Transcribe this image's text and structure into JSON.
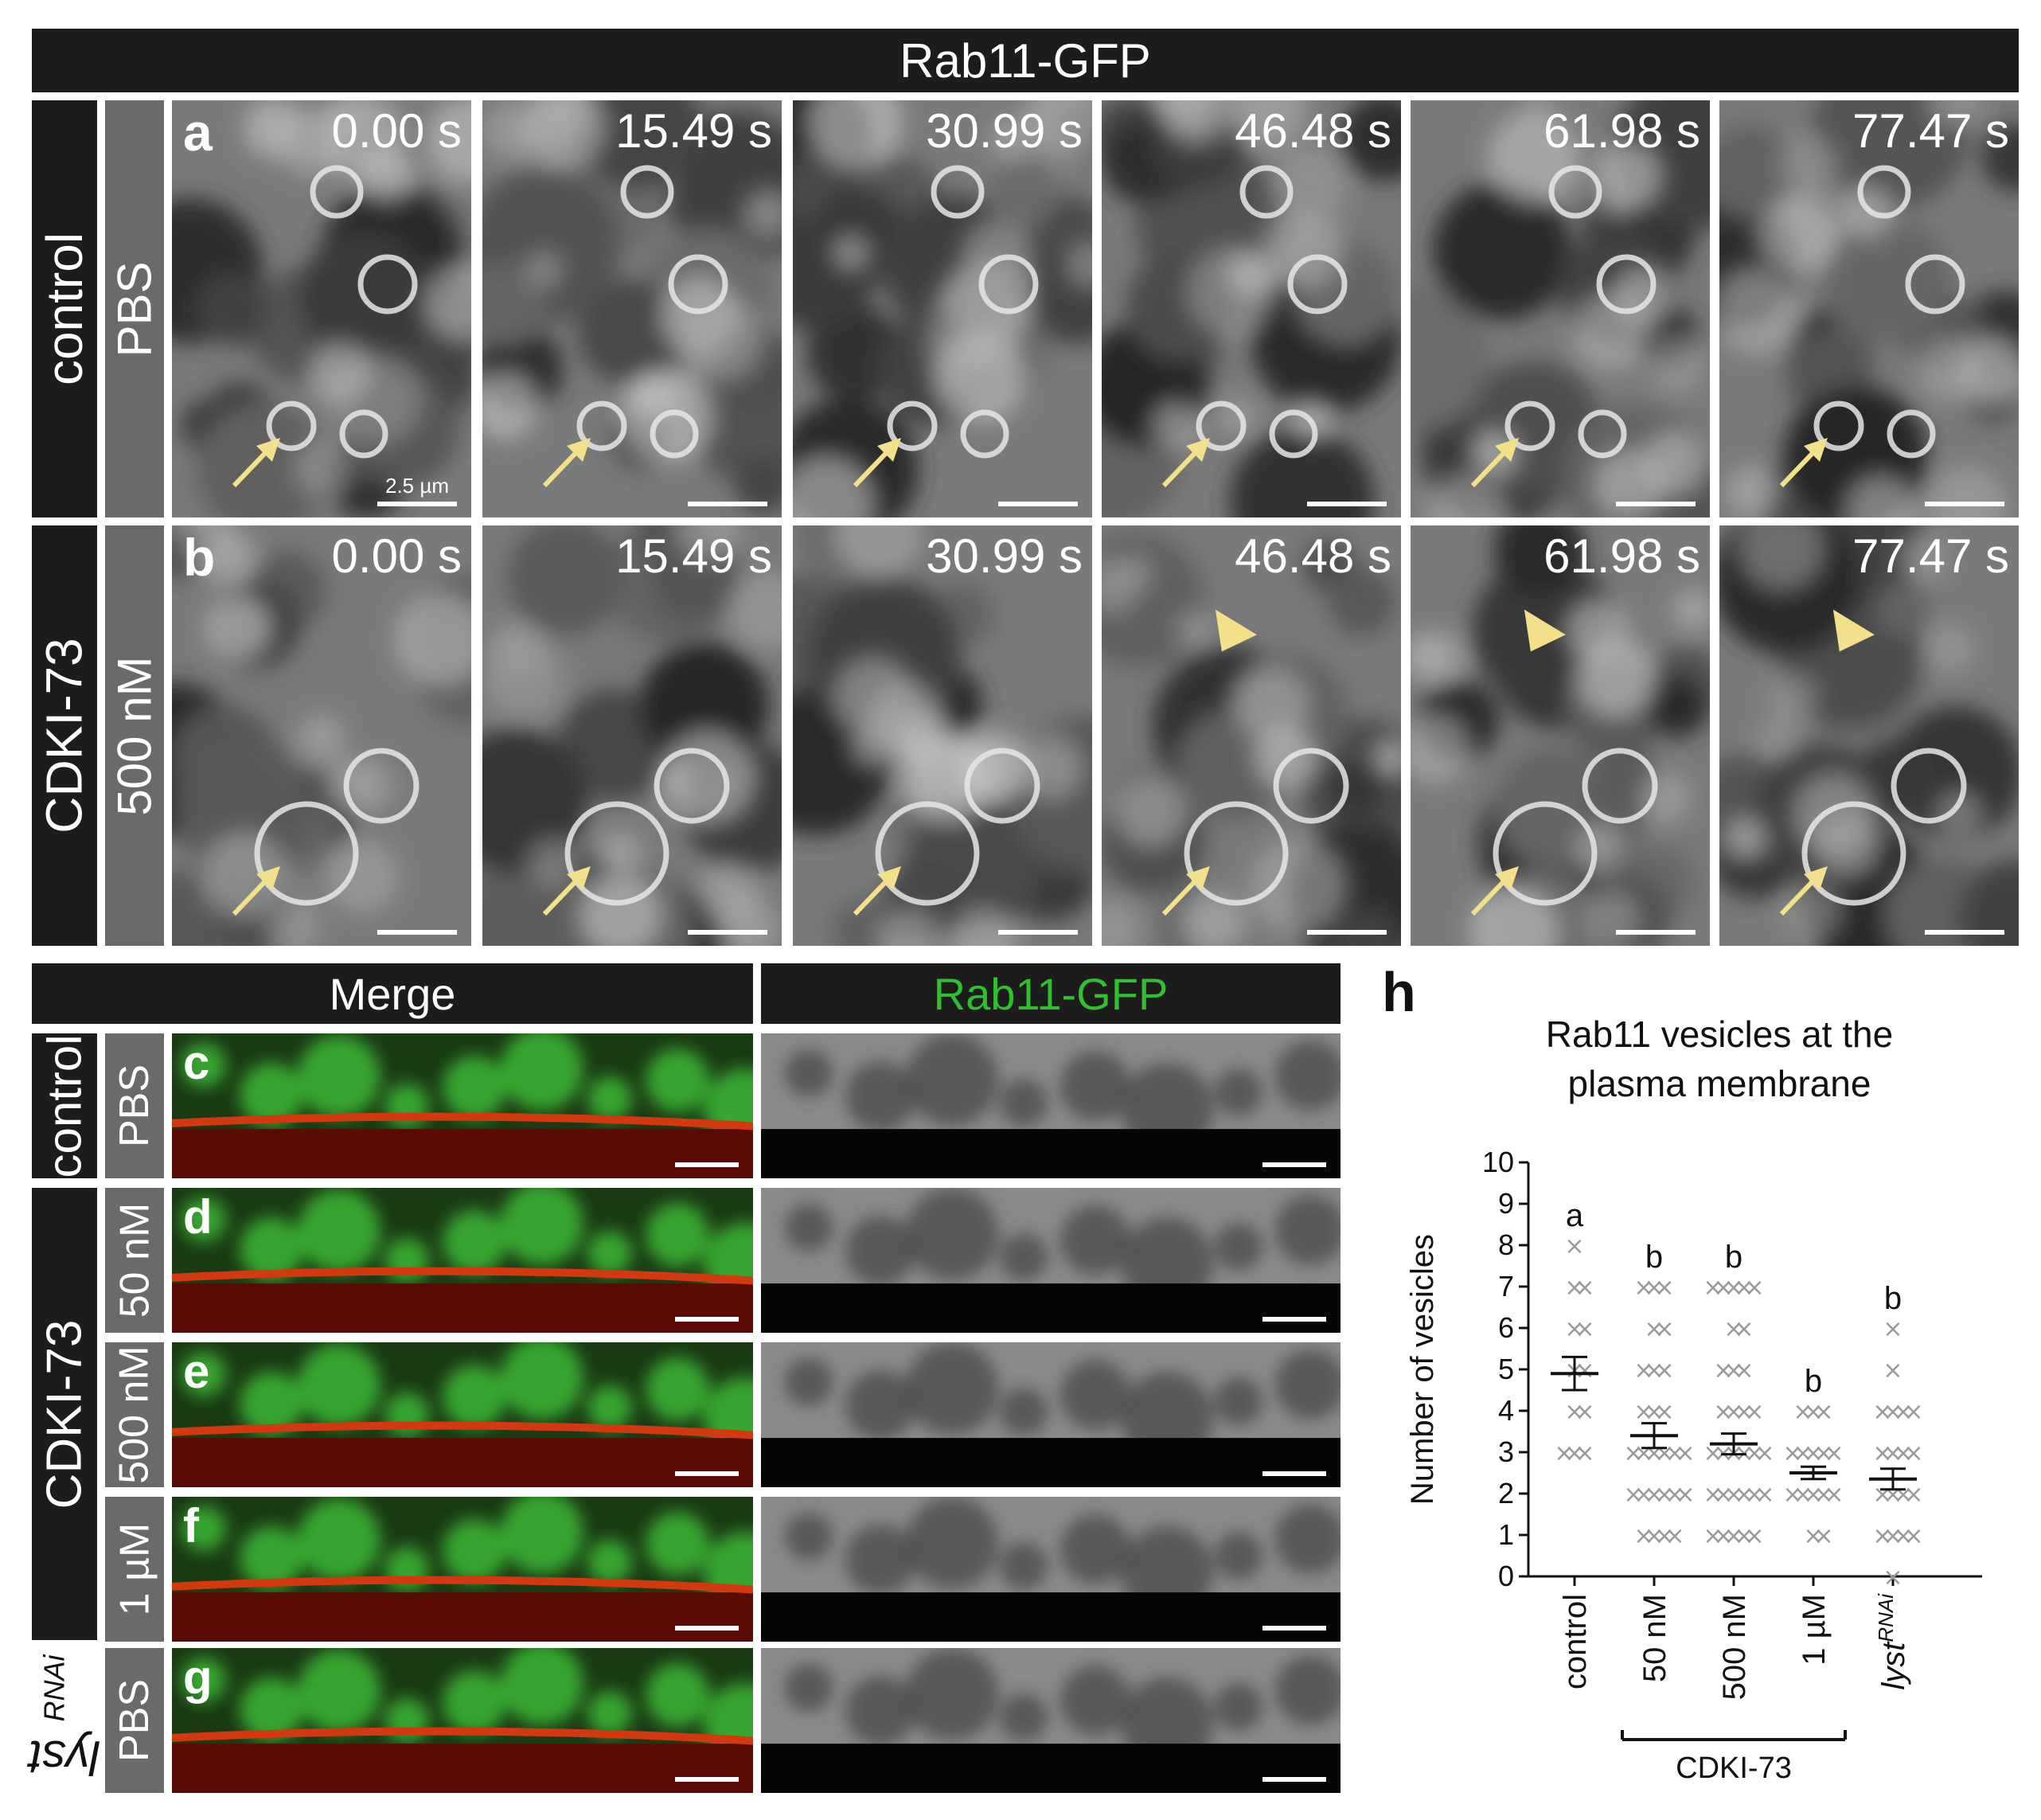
{
  "header_top": "Rab11-GFP",
  "row_a": {
    "letter": "a",
    "condition": "control",
    "treatment": "PBS",
    "times": [
      "0.00 s",
      "15.49 s",
      "30.99 s",
      "46.48 s",
      "61.98 s",
      "77.47 s"
    ],
    "scale_label": "2.5 µm"
  },
  "row_b": {
    "letter": "b",
    "condition": "CDKI-73",
    "treatment": "500 nM",
    "times": [
      "0.00 s",
      "15.49 s",
      "30.99 s",
      "46.48 s",
      "61.98 s",
      "77.47 s"
    ]
  },
  "lower_headers": {
    "merge": "Merge",
    "green": "Rab11-GFP"
  },
  "lower_rows": [
    {
      "letter": "c",
      "treatment": "PBS"
    },
    {
      "letter": "d",
      "treatment": "50 nM"
    },
    {
      "letter": "e",
      "treatment": "500 nM"
    },
    {
      "letter": "f",
      "treatment": "1 µM"
    },
    {
      "letter": "g",
      "treatment": "PBS"
    }
  ],
  "lower_groups": {
    "control": "control",
    "cdki": "CDKI-73",
    "lyst_base": "lyst",
    "lyst_sup": "RNAi"
  },
  "colors": {
    "arrow_yellow": "#f3e08a",
    "merge_green": "#3fbf3a",
    "merge_red": "#d4380f",
    "green_text": "#2fbf2f",
    "scatter_gray": "#9a9a9a"
  },
  "panel_h": {
    "letter": "h",
    "title_line1": "Rab11 vesicles at the",
    "title_line2": "plasma membrane",
    "bracket_label": "CDKI-73"
  },
  "chart_data": {
    "type": "scatter",
    "title": "Rab11 vesicles at the plasma membrane",
    "ylabel": "Number of vesicles",
    "xlabel": "",
    "ylim": [
      0,
      10
    ],
    "yticks": [
      0,
      1,
      2,
      3,
      4,
      5,
      6,
      7,
      8,
      9,
      10
    ],
    "categories": [
      "control",
      "50 nM",
      "500 nM",
      "1 µM",
      "lyst RNAi"
    ],
    "significance": [
      "a",
      "b",
      "b",
      "b",
      "b"
    ],
    "series": [
      {
        "category": "control",
        "mean": 4.9,
        "sem": 0.4,
        "values": [
          3,
          3,
          3,
          4,
          4,
          5,
          5,
          6,
          6,
          7,
          7,
          8
        ]
      },
      {
        "category": "50 nM",
        "mean": 3.4,
        "sem": 0.3,
        "values": [
          1,
          1,
          1,
          1,
          2,
          2,
          2,
          2,
          2,
          2,
          3,
          3,
          3,
          3,
          3,
          3,
          4,
          4,
          4,
          5,
          5,
          5,
          6,
          6,
          7,
          7,
          7
        ]
      },
      {
        "category": "500 nM",
        "mean": 3.2,
        "sem": 0.25,
        "values": [
          1,
          1,
          1,
          1,
          1,
          2,
          2,
          2,
          2,
          2,
          2,
          3,
          3,
          3,
          3,
          3,
          3,
          4,
          4,
          4,
          4,
          5,
          5,
          5,
          6,
          6,
          7,
          7,
          7,
          7,
          7
        ]
      },
      {
        "category": "1 µM",
        "mean": 2.5,
        "sem": 0.15,
        "values": [
          1,
          1,
          2,
          2,
          2,
          2,
          2,
          3,
          3,
          3,
          3,
          3,
          4,
          4,
          4
        ]
      },
      {
        "category": "lyst RNAi",
        "mean": 2.35,
        "sem": 0.25,
        "values": [
          0,
          1,
          1,
          1,
          1,
          2,
          2,
          2,
          2,
          3,
          3,
          3,
          3,
          4,
          4,
          4,
          4,
          5,
          6
        ]
      }
    ]
  }
}
